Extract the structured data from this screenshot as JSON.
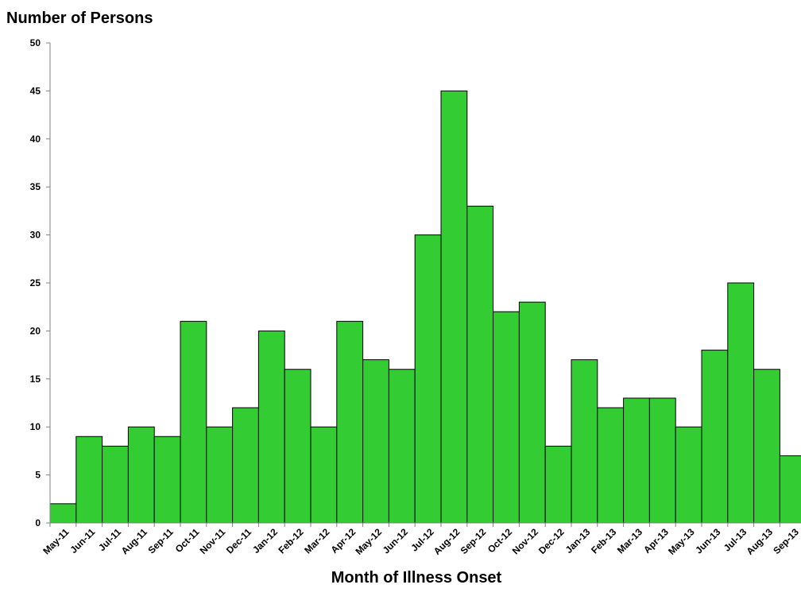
{
  "chart_data": {
    "type": "bar",
    "title": "",
    "ylabel": "Number of Persons",
    "xlabel": "Month of Illness Onset",
    "ylim": [
      0,
      50
    ],
    "yticks": [
      0,
      5,
      10,
      15,
      20,
      25,
      30,
      35,
      40,
      45,
      50
    ],
    "grid": false,
    "bar_color": "#33CC33",
    "categories": [
      "May-11",
      "Jun-11",
      "Jul-11",
      "Aug-11",
      "Sep-11",
      "Oct-11",
      "Nov-11",
      "Dec-11",
      "Jan-12",
      "Feb-12",
      "Mar-12",
      "Apr-12",
      "May-12",
      "Jun-12",
      "Jul-12",
      "Aug-12",
      "Sep-12",
      "Oct-12",
      "Nov-12",
      "Dec-12",
      "Jan-13",
      "Feb-13",
      "Mar-13",
      "Apr-13",
      "May-13",
      "Jun-13",
      "Jul-13",
      "Aug-13",
      "Sep-13"
    ],
    "values": [
      2,
      9,
      8,
      10,
      9,
      21,
      10,
      12,
      20,
      16,
      10,
      21,
      17,
      16,
      30,
      45,
      33,
      22,
      23,
      8,
      17,
      12,
      13,
      13,
      10,
      18,
      25,
      16,
      7
    ]
  }
}
